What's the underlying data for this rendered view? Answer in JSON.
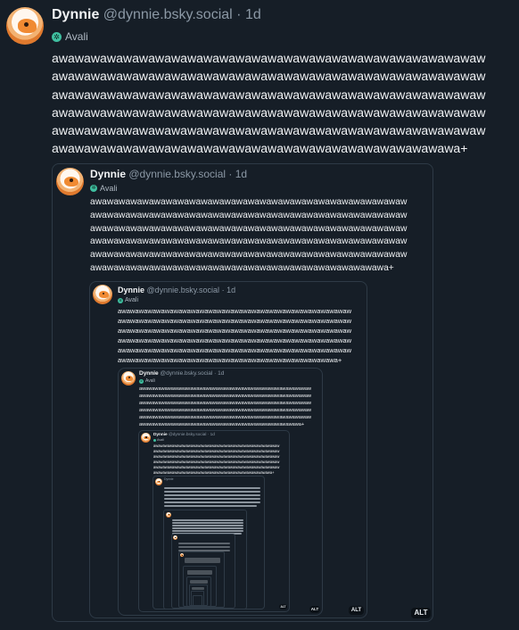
{
  "post": {
    "name": "Dynnie",
    "handle": "@dynnie.bsky.social",
    "sep": "·",
    "time": "1d",
    "pronoun_label": "Avali",
    "lines": [
      "awawawawawawawawawawawawawawawawawawawawawawawawawawaw",
      "awawawawawawawawawawawawawawawawawawawawawawawawawawaw",
      "awawawawawawawawawawawawawawawawawawawawawawawawawawaw",
      "awawawawawawawawawawawawawawawawawawawawawawawawawawaw",
      "awawawawawawawawawawawawawawawawawawawawawawawawawawaw",
      "awawawawawawawawawawawawawawawawawawawawawawawawawa+"
    ]
  },
  "alt_label": "ALT"
}
